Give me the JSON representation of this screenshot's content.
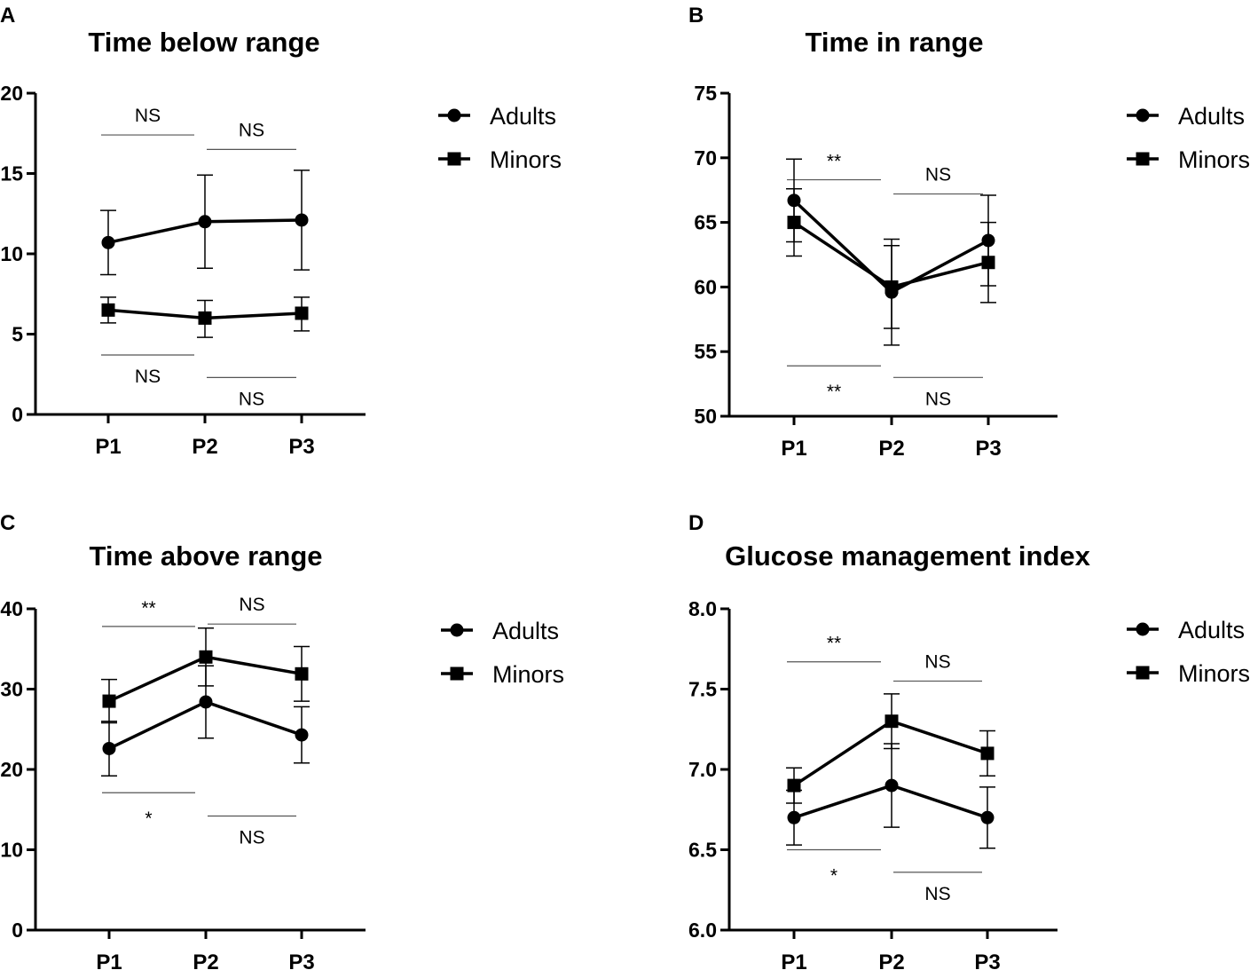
{
  "chart_data": [
    {
      "panel": "A",
      "type": "line",
      "title": "Time below range",
      "categories": [
        "P1",
        "P2",
        "P3"
      ],
      "ylim": [
        0,
        20
      ],
      "yticks": [
        0,
        5,
        10,
        15,
        20
      ],
      "ytick_labels": [
        "0",
        "5",
        "10",
        "15",
        "20"
      ],
      "series": [
        {
          "name": "Adults",
          "marker": "circle",
          "values": [
            10.7,
            12.0,
            12.1
          ],
          "err_low": [
            8.7,
            9.1,
            9.0
          ],
          "err_high": [
            12.7,
            14.9,
            15.2
          ]
        },
        {
          "name": "Minors",
          "marker": "square",
          "values": [
            6.5,
            6.0,
            6.3
          ],
          "err_low": [
            5.7,
            4.8,
            5.2
          ],
          "err_high": [
            7.3,
            7.1,
            7.3
          ]
        }
      ],
      "annotations": [
        {
          "label": "NS",
          "from": 0,
          "to": 1,
          "y": 17.4,
          "position": "above"
        },
        {
          "label": "NS",
          "from": 1,
          "to": 2,
          "y": 16.5,
          "position": "above"
        },
        {
          "label": "NS",
          "from": 0,
          "to": 1,
          "y": 3.7,
          "position": "below"
        },
        {
          "label": "NS",
          "from": 1,
          "to": 2,
          "y": 2.3,
          "position": "below"
        }
      ]
    },
    {
      "panel": "B",
      "type": "line",
      "title": "Time in range",
      "categories": [
        "P1",
        "P2",
        "P3"
      ],
      "ylim": [
        50,
        75
      ],
      "yticks": [
        50,
        55,
        60,
        65,
        70,
        75
      ],
      "ytick_labels": [
        "50",
        "55",
        "60",
        "65",
        "70",
        "75"
      ],
      "series": [
        {
          "name": "Adults",
          "marker": "circle",
          "values": [
            66.7,
            59.6,
            63.6
          ],
          "err_low": [
            63.5,
            55.5,
            60.1
          ],
          "err_high": [
            69.9,
            63.7,
            67.1
          ]
        },
        {
          "name": "Minors",
          "marker": "square",
          "values": [
            65.0,
            60.0,
            61.9
          ],
          "err_low": [
            62.4,
            56.8,
            58.8
          ],
          "err_high": [
            67.6,
            63.2,
            65.0
          ]
        }
      ],
      "annotations": [
        {
          "label": "**",
          "from": 0,
          "to": 1,
          "y": 68.3,
          "position": "above"
        },
        {
          "label": "NS",
          "from": 1,
          "to": 2,
          "y": 67.2,
          "position": "above"
        },
        {
          "label": "**",
          "from": 0,
          "to": 1,
          "y": 53.9,
          "position": "below"
        },
        {
          "label": "NS",
          "from": 1,
          "to": 2,
          "y": 53.0,
          "position": "below"
        }
      ]
    },
    {
      "panel": "C",
      "type": "line",
      "title": "Time above range",
      "categories": [
        "P1",
        "P2",
        "P3"
      ],
      "ylim": [
        0,
        40
      ],
      "yticks": [
        0,
        10,
        20,
        30,
        40
      ],
      "ytick_labels": [
        "0",
        "10",
        "20",
        "30",
        "40"
      ],
      "series": [
        {
          "name": "Adults",
          "marker": "circle",
          "values": [
            22.6,
            28.4,
            24.3
          ],
          "err_low": [
            19.2,
            23.9,
            20.8
          ],
          "err_high": [
            26.0,
            32.9,
            27.8
          ]
        },
        {
          "name": "Minors",
          "marker": "square",
          "values": [
            28.5,
            34.0,
            31.9
          ],
          "err_low": [
            25.8,
            30.4,
            28.5
          ],
          "err_high": [
            31.2,
            37.6,
            35.3
          ]
        }
      ],
      "annotations": [
        {
          "label": "**",
          "from": 0,
          "to": 1,
          "y": 37.8,
          "position": "above"
        },
        {
          "label": "NS",
          "from": 1,
          "to": 2,
          "y": 38.1,
          "position": "above"
        },
        {
          "label": "*",
          "from": 0,
          "to": 1,
          "y": 17.1,
          "position": "below"
        },
        {
          "label": "NS",
          "from": 1,
          "to": 2,
          "y": 14.2,
          "position": "below"
        }
      ]
    },
    {
      "panel": "D",
      "type": "line",
      "title": "Glucose management index",
      "categories": [
        "P1",
        "P2",
        "P3"
      ],
      "ylim": [
        6.0,
        8.0
      ],
      "yticks": [
        6.0,
        6.5,
        7.0,
        7.5,
        8.0
      ],
      "ytick_labels": [
        "6.0",
        "6.5",
        "7.0",
        "7.5",
        "8.0"
      ],
      "series": [
        {
          "name": "Adults",
          "marker": "circle",
          "values": [
            6.7,
            6.9,
            6.7
          ],
          "err_low": [
            6.53,
            6.64,
            6.51
          ],
          "err_high": [
            6.87,
            7.16,
            6.89
          ]
        },
        {
          "name": "Minors",
          "marker": "square",
          "values": [
            6.9,
            7.3,
            7.1
          ],
          "err_low": [
            6.79,
            7.13,
            6.96
          ],
          "err_high": [
            7.01,
            7.47,
            7.24
          ]
        }
      ],
      "annotations": [
        {
          "label": "**",
          "from": 0,
          "to": 1,
          "y": 7.67,
          "position": "above"
        },
        {
          "label": "NS",
          "from": 1,
          "to": 2,
          "y": 7.55,
          "position": "above"
        },
        {
          "label": "*",
          "from": 0,
          "to": 1,
          "y": 6.5,
          "position": "below"
        },
        {
          "label": "NS",
          "from": 1,
          "to": 2,
          "y": 6.36,
          "position": "below"
        }
      ]
    }
  ]
}
